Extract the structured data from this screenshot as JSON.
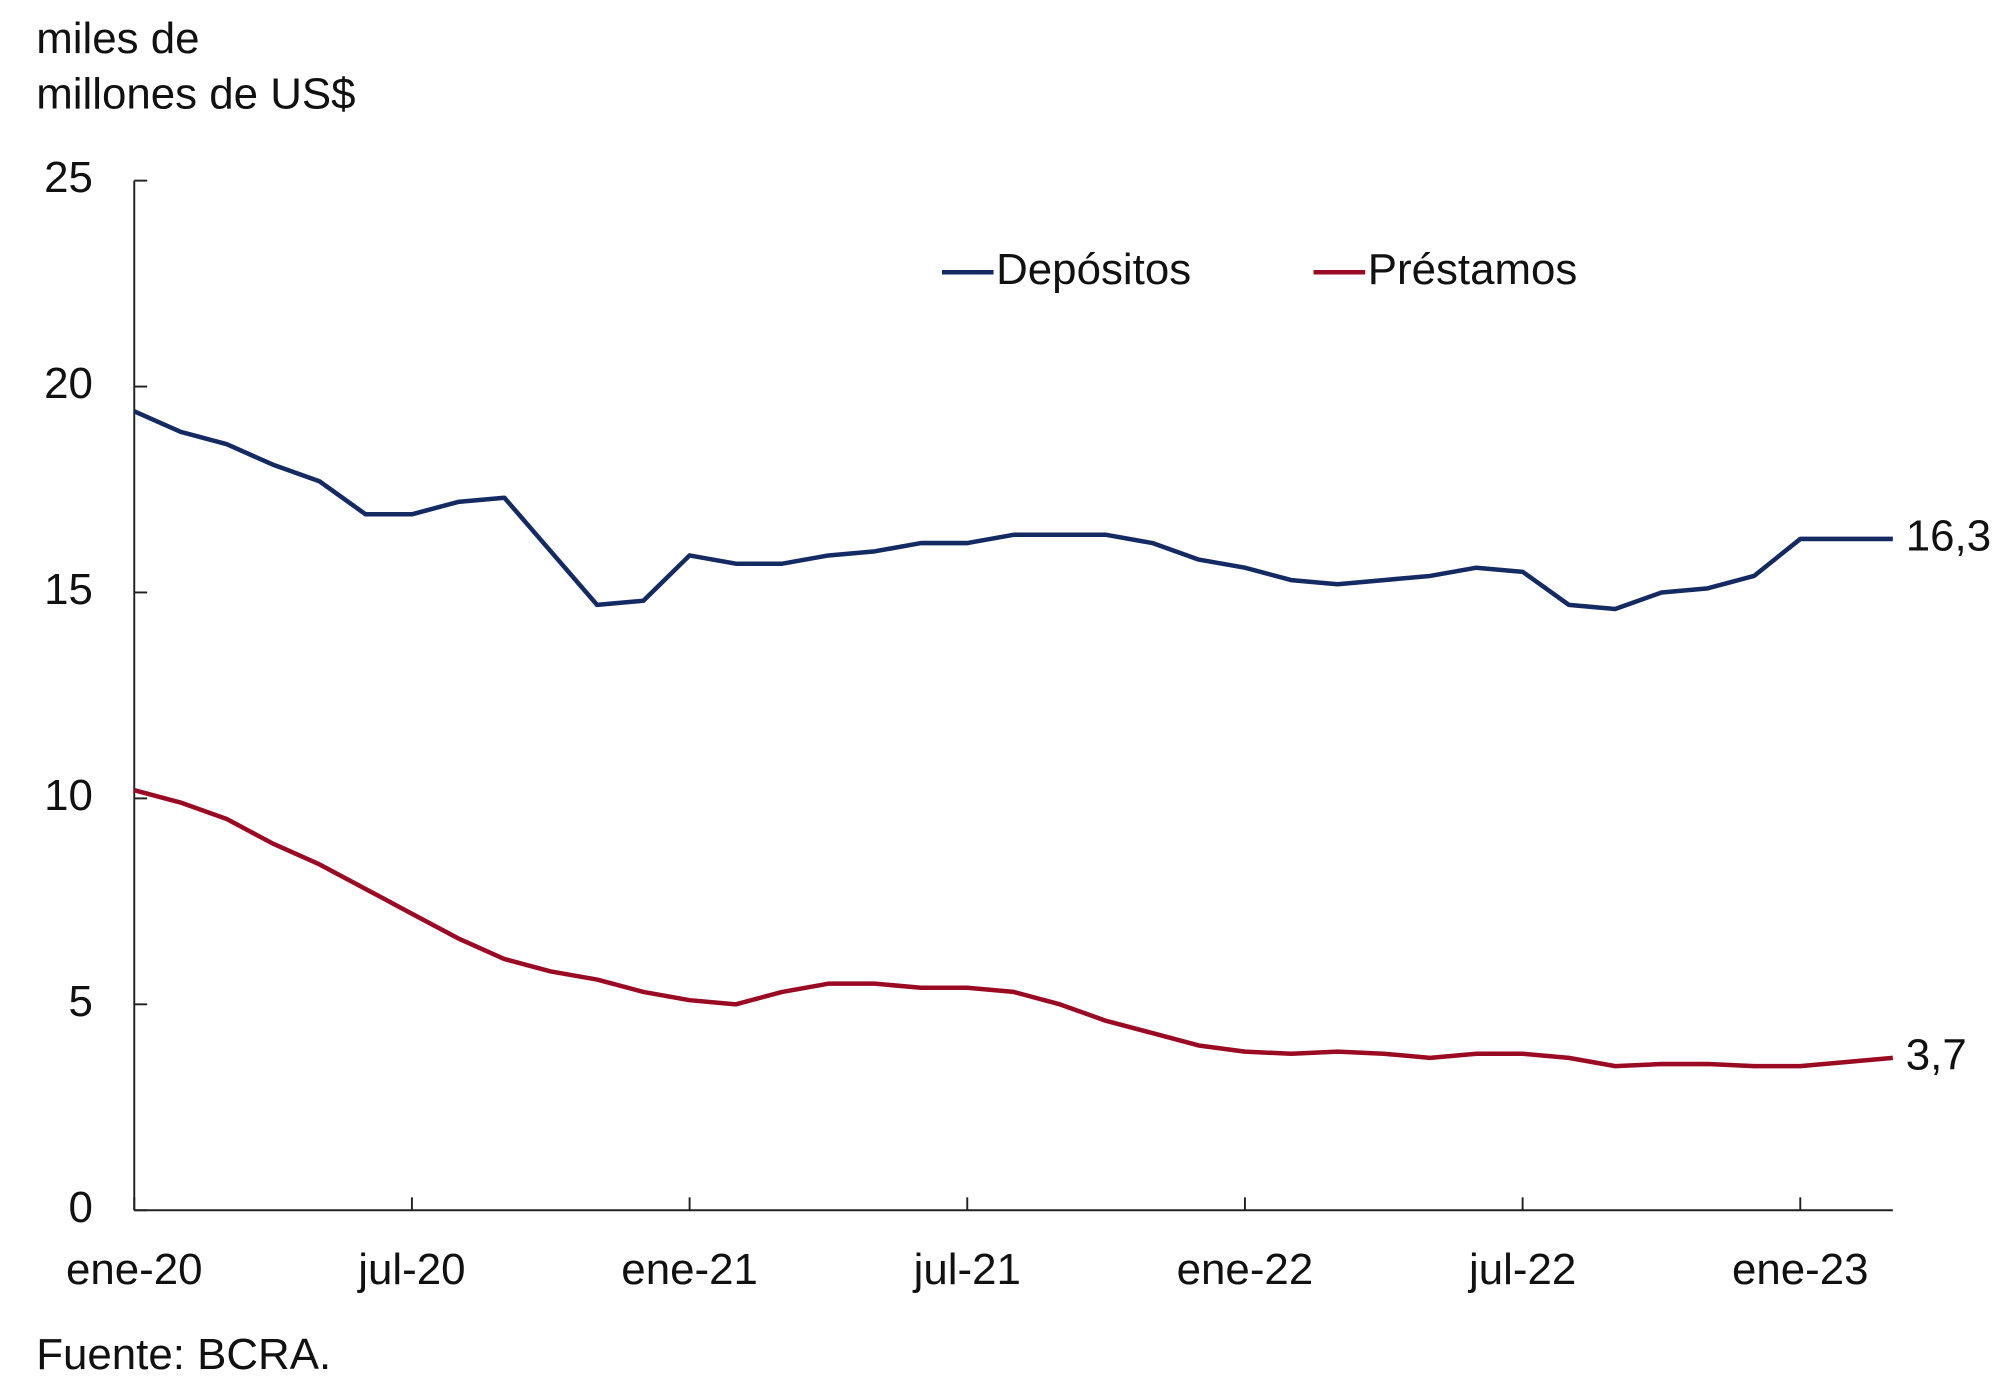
{
  "chart_data": {
    "type": "line",
    "y_label": [
      "miles de",
      "millones de US$"
    ],
    "source": "Fuente: BCRA.",
    "categories": [
      "ene-20",
      null,
      null,
      null,
      null,
      null,
      "jul-20",
      null,
      null,
      null,
      null,
      null,
      "ene-21",
      null,
      null,
      null,
      null,
      null,
      "jul-21",
      null,
      null,
      null,
      null,
      null,
      "ene-22",
      null,
      null,
      null,
      null,
      null,
      "jul-22",
      null,
      null,
      null,
      null,
      null,
      "ene-23",
      null,
      null
    ],
    "series": [
      {
        "name": "Depósitos",
        "color": "#132a63",
        "end_label": "16,3",
        "values": [
          19.4,
          18.9,
          18.6,
          18.1,
          17.7,
          16.9,
          16.9,
          17.2,
          17.3,
          16.0,
          14.7,
          14.8,
          15.9,
          15.7,
          15.7,
          15.9,
          16.0,
          16.2,
          16.2,
          16.4,
          16.4,
          16.4,
          16.2,
          15.8,
          15.6,
          15.3,
          15.2,
          15.3,
          15.4,
          15.6,
          15.5,
          14.7,
          14.6,
          15.0,
          15.1,
          15.4,
          16.3,
          16.3,
          16.3
        ]
      },
      {
        "name": "Préstamos",
        "color": "#9b0a23",
        "end_label": "3,7",
        "values": [
          10.2,
          9.9,
          9.5,
          8.9,
          8.4,
          7.8,
          7.2,
          6.6,
          6.1,
          5.8,
          5.6,
          5.3,
          5.1,
          5.0,
          5.3,
          5.5,
          5.5,
          5.4,
          5.4,
          5.3,
          5.0,
          4.6,
          4.3,
          4.0,
          3.85,
          3.8,
          3.85,
          3.8,
          3.7,
          3.8,
          3.8,
          3.7,
          3.5,
          3.55,
          3.55,
          3.5,
          3.5,
          3.6,
          3.7
        ]
      }
    ],
    "ylim": [
      0,
      25
    ],
    "yticks": [
      0,
      5,
      10,
      15,
      20,
      25
    ],
    "grid": false,
    "legend": "top"
  }
}
